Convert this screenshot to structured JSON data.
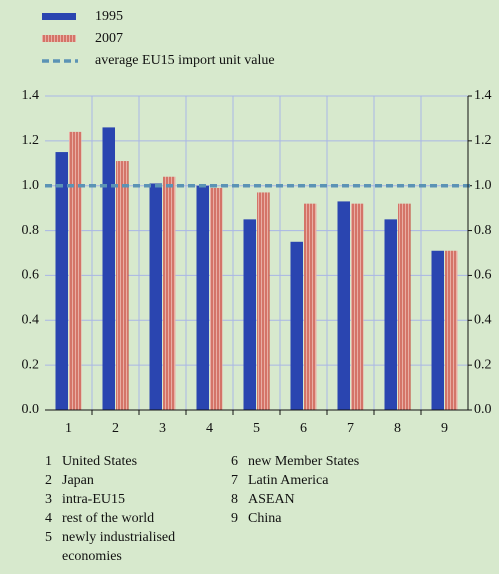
{
  "chart_data": {
    "type": "bar",
    "categories": [
      "1",
      "2",
      "3",
      "4",
      "5",
      "6",
      "7",
      "8",
      "9"
    ],
    "category_names": [
      "United States",
      "Japan",
      "intra-EU15",
      "rest of the world",
      "newly industrialised economies",
      "new Member States",
      "Latin America",
      "ASEAN",
      "China"
    ],
    "series": [
      {
        "name": "1995",
        "color": "#2a45b0",
        "values": [
          1.15,
          1.26,
          1.01,
          1.0,
          0.85,
          0.75,
          0.93,
          0.85,
          0.71
        ]
      },
      {
        "name": "2007",
        "color": "#e9aea4",
        "stripe_color": "#c0392b",
        "values": [
          1.24,
          1.11,
          1.04,
          0.99,
          0.97,
          0.92,
          0.92,
          0.92,
          0.71
        ]
      }
    ],
    "reference_line": {
      "name": "average EU15 import unit value",
      "value": 1.0,
      "color": "#5b93b5"
    },
    "ylim": [
      0,
      1.4
    ],
    "yticks": [
      {
        "value": 0,
        "label": "0.0"
      },
      0.2,
      0.4,
      0.6,
      0.8,
      {
        "value": 1,
        "label": "1.0"
      },
      1.2,
      1.4
    ],
    "grid": true
  }
}
